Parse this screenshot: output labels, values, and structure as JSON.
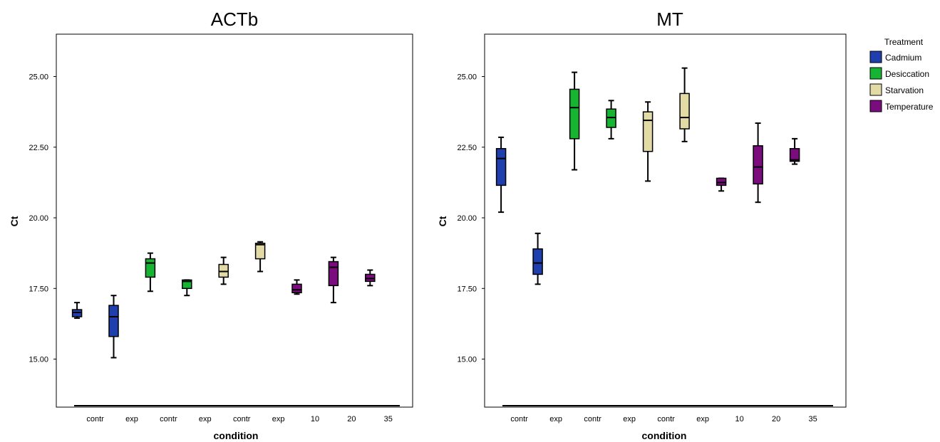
{
  "chart_data": [
    {
      "type": "box",
      "title": "ACTb",
      "xlabel": "condition",
      "ylabel": "Ct",
      "ylim": [
        13.3,
        26.5
      ],
      "yticks": [
        "15.00",
        "17.50",
        "20.00",
        "22.50",
        "25.00"
      ],
      "categories": [
        "contr",
        "exp",
        "contr",
        "exp",
        "contr",
        "exp",
        "10",
        "20",
        "35"
      ],
      "boxes": [
        {
          "treatment": "Cadmium",
          "min": 16.45,
          "q1": 16.5,
          "median": 16.65,
          "q3": 16.75,
          "max": 17.0
        },
        {
          "treatment": "Cadmium",
          "min": 15.05,
          "q1": 15.8,
          "median": 16.5,
          "q3": 16.9,
          "max": 17.25
        },
        {
          "treatment": "Desiccation",
          "min": 17.4,
          "q1": 17.9,
          "median": 18.4,
          "q3": 18.55,
          "max": 18.75
        },
        {
          "treatment": "Desiccation",
          "min": 17.25,
          "q1": 17.5,
          "median": 17.75,
          "q3": 17.8,
          "max": 17.8
        },
        {
          "treatment": "Starvation",
          "min": 17.65,
          "q1": 17.9,
          "median": 18.1,
          "q3": 18.35,
          "max": 18.6
        },
        {
          "treatment": "Starvation",
          "min": 18.1,
          "q1": 18.55,
          "median": 19.05,
          "q3": 19.1,
          "max": 19.15
        },
        {
          "treatment": "Temperature",
          "min": 17.3,
          "q1": 17.35,
          "median": 17.45,
          "q3": 17.65,
          "max": 17.8
        },
        {
          "treatment": "Temperature",
          "min": 17.0,
          "q1": 17.6,
          "median": 18.25,
          "q3": 18.45,
          "max": 18.6
        },
        {
          "treatment": "Temperature",
          "min": 17.6,
          "q1": 17.75,
          "median": 17.85,
          "q3": 18.0,
          "max": 18.15
        }
      ]
    },
    {
      "type": "box",
      "title": "MT",
      "xlabel": "condition",
      "ylabel": "Ct",
      "ylim": [
        13.3,
        26.5
      ],
      "yticks": [
        "15.00",
        "17.50",
        "20.00",
        "22.50",
        "25.00"
      ],
      "categories": [
        "contr",
        "exp",
        "contr",
        "exp",
        "contr",
        "exp",
        "10",
        "20",
        "35"
      ],
      "boxes": [
        {
          "treatment": "Cadmium",
          "min": 20.2,
          "q1": 21.15,
          "median": 22.1,
          "q3": 22.45,
          "max": 22.85
        },
        {
          "treatment": "Cadmium",
          "min": 17.65,
          "q1": 18.0,
          "median": 18.4,
          "q3": 18.9,
          "max": 19.45
        },
        {
          "treatment": "Desiccation",
          "min": 21.7,
          "q1": 22.8,
          "median": 23.9,
          "q3": 24.55,
          "max": 25.15
        },
        {
          "treatment": "Desiccation",
          "min": 22.8,
          "q1": 23.2,
          "median": 23.55,
          "q3": 23.85,
          "max": 24.15
        },
        {
          "treatment": "Starvation",
          "min": 21.3,
          "q1": 22.35,
          "median": 23.45,
          "q3": 23.75,
          "max": 24.1
        },
        {
          "treatment": "Starvation",
          "min": 22.7,
          "q1": 23.15,
          "median": 23.55,
          "q3": 24.4,
          "max": 25.3
        },
        {
          "treatment": "Temperature",
          "min": 20.95,
          "q1": 21.15,
          "median": 21.25,
          "q3": 21.4,
          "max": 21.4
        },
        {
          "treatment": "Temperature",
          "min": 20.55,
          "q1": 21.2,
          "median": 21.8,
          "q3": 22.55,
          "max": 23.35
        },
        {
          "treatment": "Temperature",
          "min": 21.9,
          "q1": 22.0,
          "median": 22.05,
          "q3": 22.45,
          "max": 22.8
        }
      ]
    }
  ],
  "legend": {
    "title": "Treatment",
    "placement": "top-right",
    "items": [
      {
        "label": "Cadmium",
        "color": "#1F3FAE"
      },
      {
        "label": "Desiccation",
        "color": "#17B332"
      },
      {
        "label": "Starvation",
        "color": "#E2DBA6"
      },
      {
        "label": "Temperature",
        "color": "#7A0C7E"
      }
    ]
  }
}
